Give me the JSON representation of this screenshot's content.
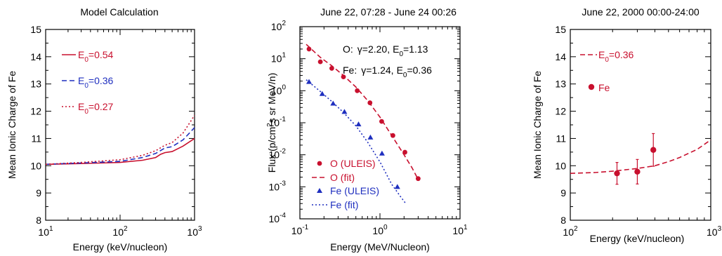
{
  "colors": {
    "red": "#c8102e",
    "blue": "#1f2fbf",
    "black": "#000000"
  },
  "chart_data": [
    {
      "type": "line",
      "title": "Model Calculation",
      "xlabel": "Energy (keV/nucleon)",
      "ylabel": "Mean Ionic Charge of Fe",
      "xscale": "log",
      "xlim": [
        10,
        1000
      ],
      "ylim": [
        8,
        15
      ],
      "x_ticks": [
        10,
        100,
        1000
      ],
      "x_tick_labels": [
        {
          "base": "10",
          "exp": "1"
        },
        {
          "base": "10",
          "exp": "2"
        },
        {
          "base": "10",
          "exp": "3"
        }
      ],
      "y_ticks": [
        8,
        9,
        10,
        11,
        12,
        13,
        14,
        15
      ],
      "y_tick_labels": [
        "8",
        "9",
        "10",
        "11",
        "12",
        "13",
        "14",
        "15"
      ],
      "legend": "top-left",
      "series": [
        {
          "name": "E0=0.54",
          "label_main": "E",
          "label_sub": "0",
          "label_rest": "=0.54",
          "color": "#c8102e",
          "dash": "solid",
          "x": [
            10,
            30,
            100,
            200,
            300,
            350,
            400,
            500,
            700,
            1000
          ],
          "y": [
            10.05,
            10.08,
            10.12,
            10.2,
            10.3,
            10.42,
            10.48,
            10.52,
            10.72,
            11.0
          ]
        },
        {
          "name": "E0=0.36",
          "label_main": "E",
          "label_sub": "0",
          "label_rest": "=0.36",
          "color": "#1f2fbf",
          "dash": "dashed",
          "x": [
            10,
            30,
            100,
            200,
            300,
            400,
            500,
            700,
            1000
          ],
          "y": [
            10.05,
            10.1,
            10.16,
            10.3,
            10.45,
            10.65,
            10.7,
            10.95,
            11.4
          ]
        },
        {
          "name": "E0=0.27",
          "label_main": "E",
          "label_sub": "0",
          "label_rest": "=0.27",
          "color": "#c8102e",
          "dash": "dotted",
          "x": [
            10,
            30,
            100,
            200,
            300,
            400,
            500,
            700,
            1000
          ],
          "y": [
            10.05,
            10.12,
            10.22,
            10.38,
            10.55,
            10.75,
            10.85,
            11.2,
            11.85
          ]
        }
      ]
    },
    {
      "type": "scatter",
      "title": "June 22, 07:28 - June 24 00:26",
      "xlabel": "Energy (MeV/Nucleon)",
      "ylabel_parts": [
        "Flux (p/cm",
        "2",
        "s sr MeV/n)"
      ],
      "xscale": "log",
      "yscale": "log",
      "xlim": [
        0.1,
        10
      ],
      "ylim": [
        0.0001,
        100
      ],
      "x_ticks": [
        0.1,
        1,
        10
      ],
      "x_tick_labels": [
        {
          "base": "10",
          "exp": "-1"
        },
        {
          "base": "10",
          "exp": "0"
        },
        {
          "base": "10",
          "exp": "1"
        }
      ],
      "y_ticks": [
        0.0001,
        0.001,
        0.01,
        0.1,
        1,
        10,
        100
      ],
      "y_tick_labels": [
        {
          "base": "10",
          "exp": "-4"
        },
        {
          "base": "10",
          "exp": "-3"
        },
        {
          "base": "10",
          "exp": "-2"
        },
        {
          "base": "10",
          "exp": "-1"
        },
        {
          "base": "10",
          "exp": "0"
        },
        {
          "base": "10",
          "exp": "1"
        },
        {
          "base": "10",
          "exp": "2"
        }
      ],
      "annotations": [
        {
          "species": "O:",
          "gamma": "γ=2.20,",
          "e_main": "E",
          "e_sub": "0",
          "e_rest": "=1.13"
        },
        {
          "species": "Fe:",
          "gamma": "γ=1.24,",
          "e_main": "E",
          "e_sub": "0",
          "e_rest": "=0.36"
        }
      ],
      "legend": "bottom-left",
      "series": [
        {
          "name": "O (ULEIS)",
          "kind": "points",
          "marker": "circle",
          "color": "#c8102e",
          "x": [
            0.13,
            0.18,
            0.25,
            0.35,
            0.52,
            0.75,
            1.05,
            1.45,
            2.05,
            3.0
          ],
          "y": [
            20,
            8,
            5,
            2.7,
            1.0,
            0.42,
            0.11,
            0.04,
            0.012,
            0.0018
          ]
        },
        {
          "name": "O (fit)",
          "kind": "line",
          "color": "#c8102e",
          "dash": "dashed",
          "x": [
            0.12,
            0.18,
            0.25,
            0.35,
            0.5,
            0.7,
            1.0,
            1.4,
            2.0,
            2.5,
            3.0
          ],
          "y": [
            28,
            11,
            6,
            3,
            1.3,
            0.5,
            0.15,
            0.04,
            0.01,
            0.004,
            0.0017
          ]
        },
        {
          "name": "Fe (ULEIS)",
          "kind": "points",
          "marker": "triangle",
          "color": "#1f2fbf",
          "x": [
            0.13,
            0.19,
            0.26,
            0.36,
            0.54,
            0.76,
            1.06,
            1.65
          ],
          "y": [
            1.9,
            0.8,
            0.4,
            0.22,
            0.09,
            0.035,
            0.011,
            0.001
          ]
        },
        {
          "name": "Fe (fit)",
          "kind": "line",
          "color": "#1f2fbf",
          "dash": "dotted",
          "x": [
            0.12,
            0.18,
            0.25,
            0.35,
            0.5,
            0.7,
            1.0,
            1.4,
            1.8,
            2.1
          ],
          "y": [
            2.2,
            0.95,
            0.46,
            0.21,
            0.08,
            0.025,
            0.006,
            0.0012,
            0.0005,
            0.0003
          ]
        }
      ]
    },
    {
      "type": "scatter",
      "title": "June 22, 2000 00:00-24:00",
      "xlabel": "Energy (keV/nucleon)",
      "ylabel": "Mean Ionic Charge of Fe",
      "xscale": "log",
      "xlim": [
        100,
        1000
      ],
      "ylim": [
        8,
        15
      ],
      "x_ticks": [
        100,
        1000
      ],
      "x_tick_labels": [
        {
          "base": "10",
          "exp": "2"
        },
        {
          "base": "10",
          "exp": "3"
        }
      ],
      "y_ticks": [
        8,
        9,
        10,
        11,
        12,
        13,
        14,
        15
      ],
      "y_tick_labels": [
        "8",
        "9",
        "10",
        "11",
        "12",
        "13",
        "14",
        "15"
      ],
      "legend": "top-left",
      "series": [
        {
          "name": "E0=0.36",
          "kind": "line",
          "label_main": "E",
          "label_sub": "0",
          "label_rest": "=0.36",
          "color": "#c8102e",
          "dash": "dashed",
          "x": [
            100,
            150,
            200,
            300,
            400,
            500,
            600,
            800,
            1000
          ],
          "y": [
            9.72,
            9.75,
            9.8,
            9.9,
            10.0,
            10.15,
            10.3,
            10.6,
            10.95
          ]
        },
        {
          "name": "Fe",
          "kind": "points",
          "marker": "circle",
          "color": "#c8102e",
          "x": [
            215,
            300,
            390
          ],
          "y": [
            9.72,
            9.78,
            10.58
          ],
          "yerr": [
            0.4,
            0.45,
            0.6
          ]
        }
      ]
    }
  ]
}
